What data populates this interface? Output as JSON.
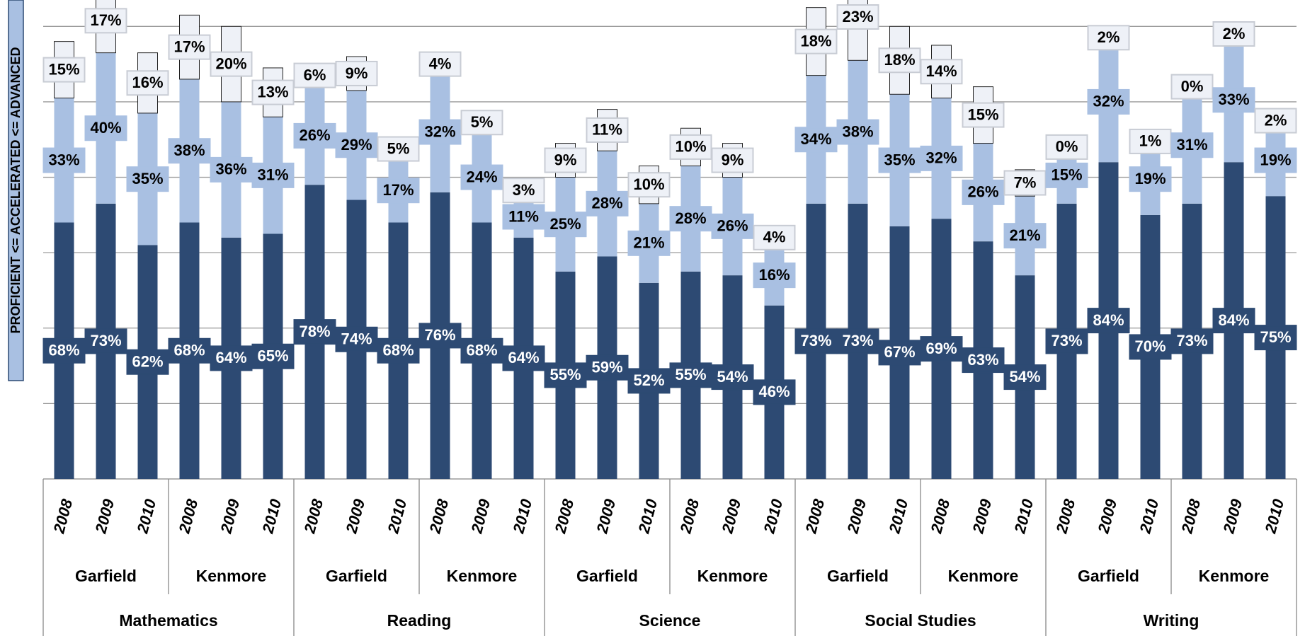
{
  "chart_data": {
    "type": "stacked-bar",
    "y_label": "PROFICIENT <= ACCELERATED <= ADVANCED",
    "categories": [
      "2008",
      "2009",
      "2010",
      "2008",
      "2009",
      "2010",
      "2008",
      "2009",
      "2010",
      "2008",
      "2009",
      "2010",
      "2008",
      "2009",
      "2010",
      "2008",
      "2009",
      "2010",
      "2008",
      "2009",
      "2010",
      "2008",
      "2009",
      "2010",
      "2008",
      "2009",
      "2010",
      "2008",
      "2009",
      "2010"
    ],
    "schools": [
      "Garfield",
      "Kenmore",
      "Garfield",
      "Kenmore",
      "Garfield",
      "Kenmore",
      "Garfield",
      "Kenmore",
      "Garfield",
      "Kenmore"
    ],
    "subjects": [
      "Mathematics",
      "Reading",
      "Science",
      "Social Studies",
      "Writing"
    ],
    "series": [
      {
        "color": "#2d4a73",
        "label_text_color": "#ffffff",
        "values": [
          68,
          73,
          62,
          68,
          64,
          65,
          78,
          74,
          68,
          76,
          68,
          64,
          55,
          59,
          52,
          55,
          54,
          46,
          73,
          73,
          67,
          69,
          63,
          54,
          73,
          84,
          70,
          73,
          84,
          75
        ],
        "value_labels": [
          "68%",
          "73%",
          "62%",
          "68%",
          "64%",
          "65%",
          "78%",
          "74%",
          "68%",
          "76%",
          "68%",
          "64%",
          "55%",
          "59%",
          "52%",
          "55%",
          "54%",
          "46%",
          "73%",
          "73%",
          "67%",
          "69%",
          "63%",
          "54%",
          "73%",
          "84%",
          "70%",
          "73%",
          "84%",
          "75%"
        ]
      },
      {
        "color": "#a9c0e2",
        "label_text_color": "#000000",
        "values": [
          33,
          40,
          35,
          38,
          36,
          31,
          26,
          29,
          17,
          32,
          24,
          11,
          25,
          28,
          21,
          28,
          26,
          16,
          34,
          38,
          35,
          32,
          26,
          21,
          15,
          32,
          19,
          31,
          33,
          19
        ],
        "value_labels": [
          "33%",
          "40%",
          "35%",
          "38%",
          "36%",
          "31%",
          "26%",
          "29%",
          "17%",
          "32%",
          "24%",
          "11%",
          "25%",
          "28%",
          "21%",
          "28%",
          "26%",
          "16%",
          "34%",
          "38%",
          "35%",
          "32%",
          "26%",
          "21%",
          "15%",
          "32%",
          "19%",
          "31%",
          "33%",
          "19%"
        ]
      },
      {
        "color": "#eef1f7",
        "label_text_color": "#000000",
        "values": [
          15,
          17,
          16,
          17,
          20,
          13,
          6,
          9,
          5,
          4,
          5,
          3,
          9,
          11,
          10,
          10,
          9,
          4,
          18,
          23,
          18,
          14,
          15,
          7,
          0,
          2,
          1,
          0,
          2,
          2
        ],
        "value_labels": [
          "15%",
          "17%",
          "16%",
          "17%",
          "20%",
          "13%",
          "6%",
          "9%",
          "5%",
          "4%",
          "5%",
          "3%",
          "9%",
          "11%",
          "10%",
          "10%",
          "9%",
          "4%",
          "18%",
          "23%",
          "18%",
          "14%",
          "15%",
          "7%",
          "0%",
          "2%",
          "1%",
          "0%",
          "2%",
          "2%"
        ]
      }
    ],
    "ylim": [
      0,
      127
    ],
    "yticks": [
      20,
      40,
      60,
      80,
      100,
      120
    ],
    "grid": true
  }
}
